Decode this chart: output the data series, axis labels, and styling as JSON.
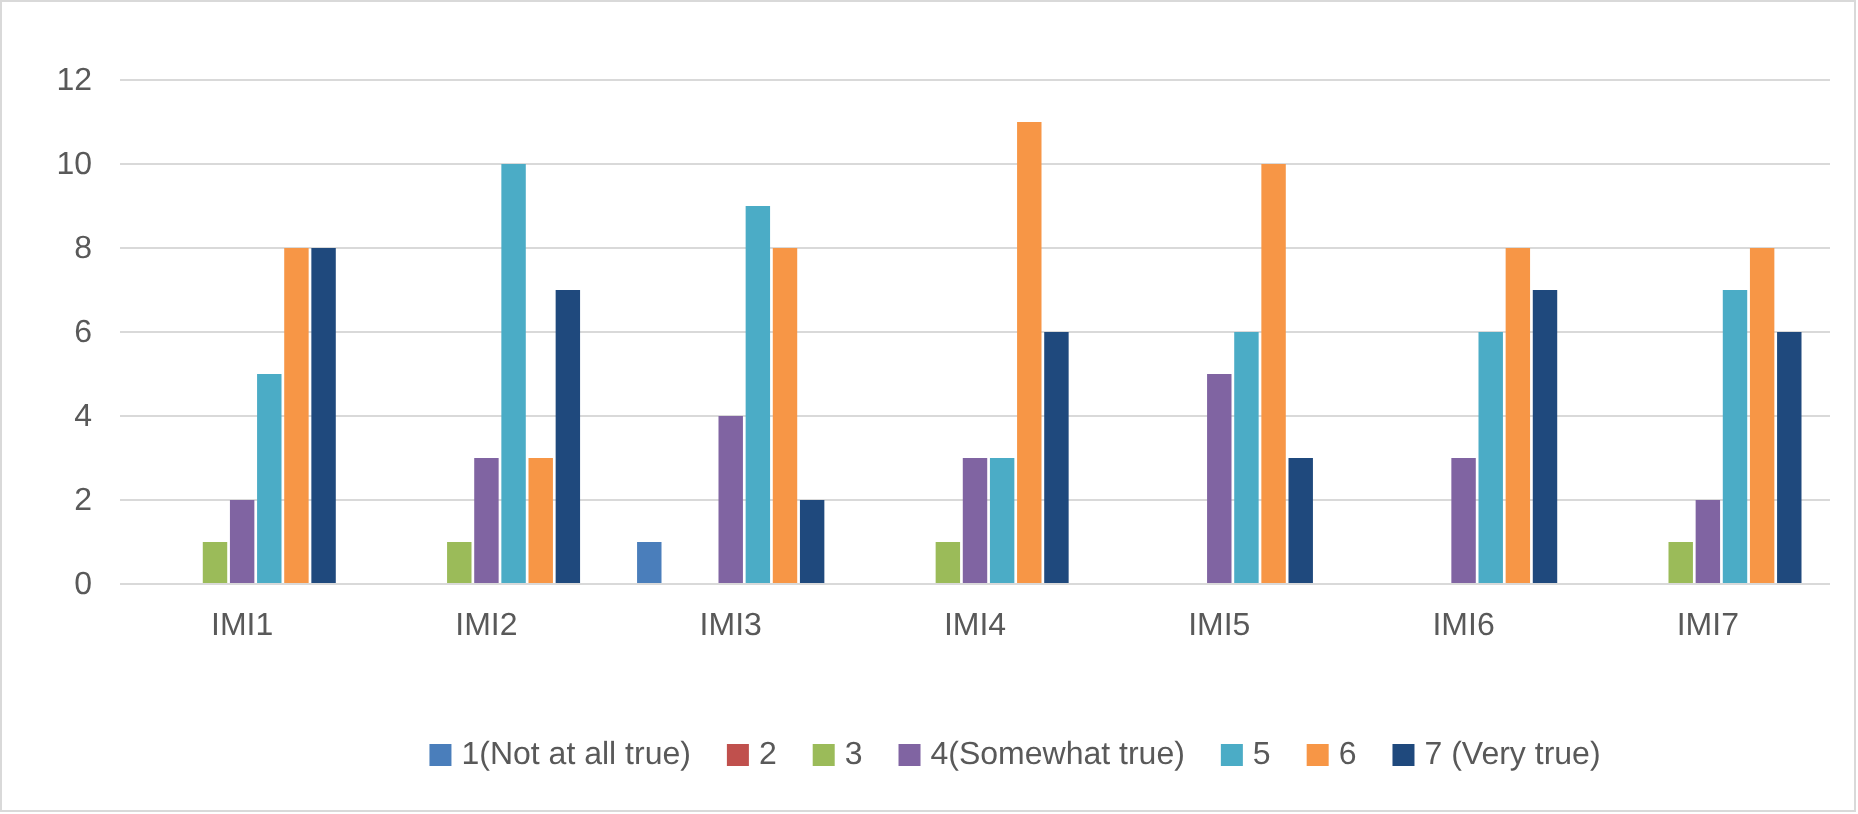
{
  "chart_data": {
    "type": "bar",
    "categories": [
      "IMI1",
      "IMI2",
      "IMI3",
      "IMI4",
      "IMI5",
      "IMI6",
      "IMI7"
    ],
    "series": [
      {
        "name": "1(Not at all true)",
        "color": "#4a7ebb",
        "values": [
          0,
          0,
          1,
          0,
          0,
          0,
          0
        ]
      },
      {
        "name": "2",
        "color": "#c0504d",
        "values": [
          0,
          0,
          0,
          0,
          0,
          0,
          0
        ]
      },
      {
        "name": "3",
        "color": "#9bbb59",
        "values": [
          1,
          1,
          0,
          1,
          0,
          0,
          1
        ]
      },
      {
        "name": "4(Somewhat true)",
        "color": "#8064a2",
        "values": [
          2,
          3,
          4,
          3,
          5,
          3,
          2
        ]
      },
      {
        "name": "5",
        "color": "#4bacc6",
        "values": [
          5,
          10,
          9,
          3,
          6,
          6,
          7
        ]
      },
      {
        "name": "6",
        "color": "#f79646",
        "values": [
          8,
          3,
          8,
          11,
          10,
          8,
          8
        ]
      },
      {
        "name": "7 (Very true)",
        "color": "#1f497d",
        "values": [
          8,
          7,
          2,
          6,
          3,
          7,
          6
        ]
      }
    ],
    "ylim": [
      0,
      12
    ],
    "yticks": [
      0,
      2,
      4,
      6,
      8,
      10,
      12
    ],
    "grid": "y",
    "legend": "bottom"
  }
}
